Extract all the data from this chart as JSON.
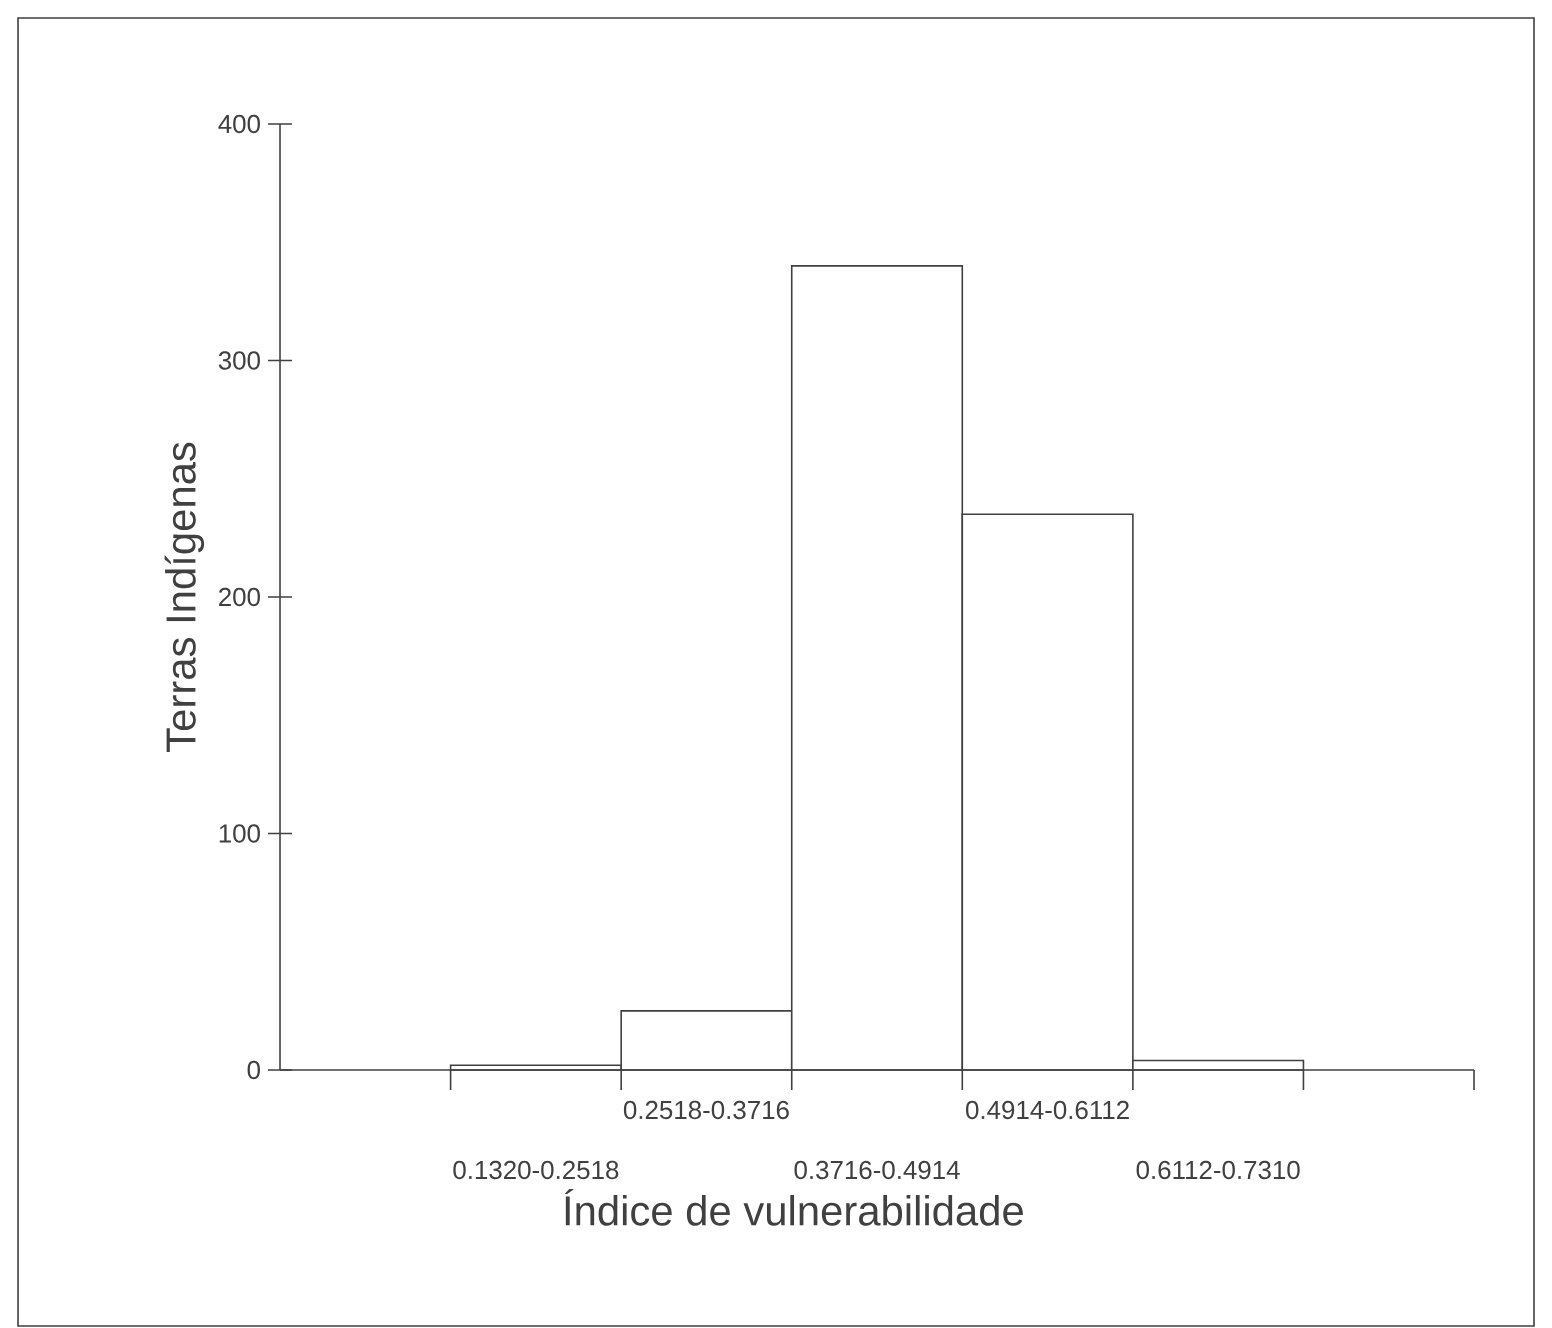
{
  "chart_data": {
    "type": "bar",
    "xlabel": "Índice de vulnerabilidade",
    "ylabel": "Terras Indígenas",
    "categories": [
      "0.1320-0.2518",
      "0.2518-0.3716",
      "0.3716-0.4914",
      "0.4914-0.6112",
      "0.6112-0.7310"
    ],
    "values": [
      2,
      25,
      340,
      235,
      4
    ],
    "color": "#ffffff",
    "ylim": [
      0,
      400
    ],
    "yticks": [
      0,
      100,
      200,
      300,
      400
    ],
    "grid": false
  }
}
